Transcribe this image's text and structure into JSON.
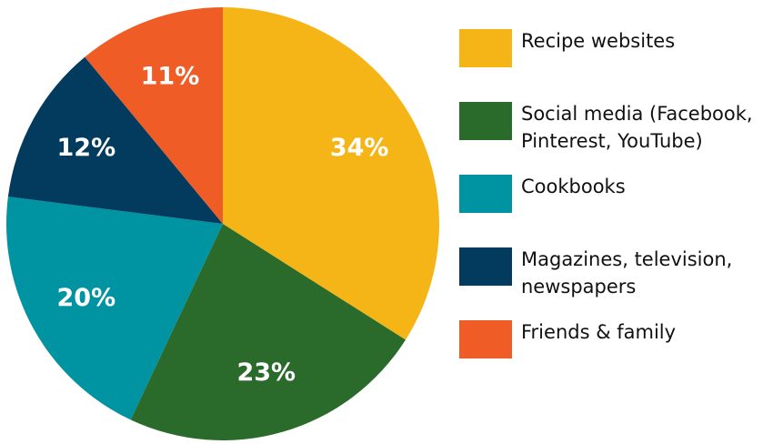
{
  "chart_data": {
    "type": "pie",
    "categories": [
      "Recipe websites",
      "Social media (Facebook, Pinterest, YouTube)",
      "Cookbooks",
      "Magazines, television, newspapers",
      "Friends & family"
    ],
    "values": [
      34,
      23,
      20,
      12,
      11
    ],
    "value_labels": [
      "34%",
      "23%",
      "20%",
      "12%",
      "11%"
    ],
    "colors": [
      "#f6b516",
      "#2a6a2b",
      "#0093a1",
      "#023b5e",
      "#ef5c25"
    ]
  }
}
